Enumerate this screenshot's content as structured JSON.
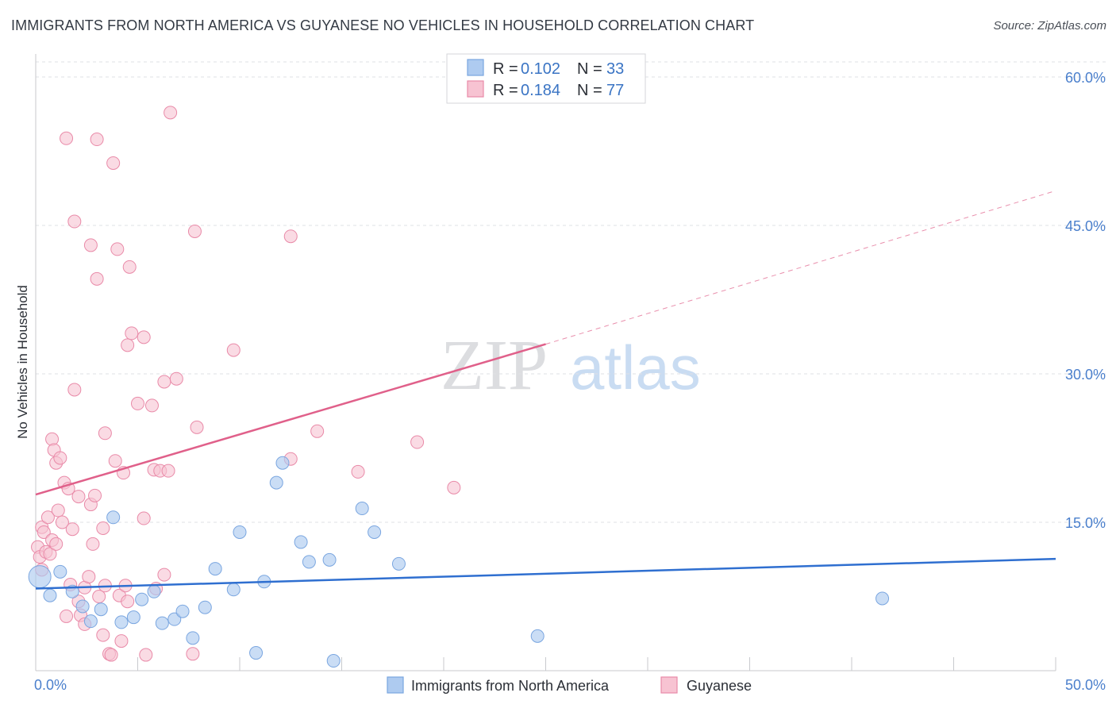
{
  "title": "IMMIGRANTS FROM NORTH AMERICA VS GUYANESE NO VEHICLES IN HOUSEHOLD CORRELATION CHART",
  "source": "Source: ZipAtlas.com",
  "watermark": {
    "zip": "ZIP",
    "atlas": "atlas"
  },
  "colors": {
    "blue_fill": "#aecbf0",
    "blue_stroke": "#7aa6e0",
    "blue_line": "#2f6fd0",
    "pink_fill": "#f7c3d2",
    "pink_stroke": "#e98aa8",
    "pink_line": "#e0608a",
    "tick_text": "#4a7fcc"
  },
  "legend": {
    "series": [
      {
        "r_label": "R =",
        "r_value": "0.102",
        "n_label": "N =",
        "n_value": "33"
      },
      {
        "r_label": "R =",
        "r_value": "0.184",
        "n_label": "N =",
        "n_value": "77"
      }
    ]
  },
  "bottom_legend": [
    "Immigrants from North America",
    "Guyanese"
  ],
  "chart_data": {
    "type": "scatter",
    "title": "IMMIGRANTS FROM NORTH AMERICA VS GUYANESE NO VEHICLES IN HOUSEHOLD CORRELATION CHART",
    "xlabel": "",
    "ylabel": "No Vehicles in Household",
    "xlim": [
      0,
      50
    ],
    "ylim": [
      0,
      60
    ],
    "x_tick_labels": [
      "0.0%",
      "50.0%"
    ],
    "y_ticks": [
      15,
      30,
      45,
      60
    ],
    "y_tick_labels": [
      "15.0%",
      "30.0%",
      "45.0%",
      "60.0%"
    ],
    "series": [
      {
        "name": "Immigrants from North America",
        "R": 0.102,
        "N": 33,
        "trend": {
          "x": [
            0,
            50
          ],
          "y": [
            8.3,
            11.3
          ],
          "dashed_from": null
        },
        "points": [
          [
            0.2,
            9.5
          ],
          [
            0.7,
            7.6
          ],
          [
            1.2,
            10.0
          ],
          [
            1.8,
            8.0
          ],
          [
            2.3,
            6.5
          ],
          [
            2.7,
            5.0
          ],
          [
            3.2,
            6.2
          ],
          [
            3.8,
            15.5
          ],
          [
            4.2,
            4.9
          ],
          [
            4.8,
            5.4
          ],
          [
            5.2,
            7.2
          ],
          [
            5.8,
            8.0
          ],
          [
            6.2,
            4.8
          ],
          [
            6.8,
            5.2
          ],
          [
            7.2,
            6.0
          ],
          [
            7.7,
            3.3
          ],
          [
            8.3,
            6.4
          ],
          [
            8.8,
            10.3
          ],
          [
            9.7,
            8.2
          ],
          [
            10.0,
            14.0
          ],
          [
            10.8,
            1.8
          ],
          [
            11.2,
            9.0
          ],
          [
            11.8,
            19.0
          ],
          [
            12.1,
            21.0
          ],
          [
            13.0,
            13.0
          ],
          [
            13.4,
            11.0
          ],
          [
            14.4,
            11.2
          ],
          [
            14.6,
            1.0
          ],
          [
            16.0,
            16.4
          ],
          [
            16.6,
            14.0
          ],
          [
            17.8,
            10.8
          ],
          [
            24.6,
            3.5
          ],
          [
            41.5,
            7.3
          ]
        ]
      },
      {
        "name": "Guyanese",
        "R": 0.184,
        "N": 77,
        "trend": {
          "x": [
            0,
            25
          ],
          "y": [
            17.8,
            33.0
          ],
          "dashed_to": [
            50,
            48.5
          ]
        },
        "points": [
          [
            0.1,
            12.5
          ],
          [
            0.2,
            11.5
          ],
          [
            0.3,
            14.5
          ],
          [
            0.4,
            14.0
          ],
          [
            0.5,
            12.0
          ],
          [
            0.6,
            15.5
          ],
          [
            0.7,
            11.8
          ],
          [
            0.8,
            13.2
          ],
          [
            0.8,
            23.4
          ],
          [
            0.9,
            22.3
          ],
          [
            1.0,
            12.8
          ],
          [
            1.0,
            21.0
          ],
          [
            1.1,
            16.2
          ],
          [
            1.2,
            21.5
          ],
          [
            1.3,
            15.0
          ],
          [
            1.4,
            19.0
          ],
          [
            1.5,
            53.8
          ],
          [
            1.5,
            5.5
          ],
          [
            1.6,
            18.4
          ],
          [
            1.7,
            8.7
          ],
          [
            1.8,
            14.3
          ],
          [
            1.9,
            45.4
          ],
          [
            1.9,
            28.4
          ],
          [
            2.1,
            17.6
          ],
          [
            2.1,
            7.0
          ],
          [
            2.2,
            5.6
          ],
          [
            2.4,
            8.4
          ],
          [
            2.4,
            4.7
          ],
          [
            2.6,
            9.5
          ],
          [
            2.7,
            16.8
          ],
          [
            2.7,
            43.0
          ],
          [
            2.8,
            12.8
          ],
          [
            2.9,
            17.7
          ],
          [
            3.0,
            39.6
          ],
          [
            3.0,
            53.7
          ],
          [
            3.1,
            7.5
          ],
          [
            3.3,
            3.6
          ],
          [
            3.3,
            14.4
          ],
          [
            3.4,
            8.6
          ],
          [
            3.4,
            24.0
          ],
          [
            3.6,
            1.7
          ],
          [
            3.7,
            1.6
          ],
          [
            3.8,
            51.3
          ],
          [
            3.9,
            21.2
          ],
          [
            4.0,
            42.6
          ],
          [
            4.1,
            7.6
          ],
          [
            4.2,
            3.0
          ],
          [
            4.3,
            20.0
          ],
          [
            4.4,
            8.6
          ],
          [
            4.5,
            7.0
          ],
          [
            4.5,
            32.9
          ],
          [
            4.6,
            40.8
          ],
          [
            4.7,
            34.1
          ],
          [
            5.0,
            27.0
          ],
          [
            5.3,
            33.7
          ],
          [
            5.3,
            15.4
          ],
          [
            5.4,
            1.6
          ],
          [
            5.7,
            26.8
          ],
          [
            5.8,
            20.3
          ],
          [
            5.9,
            8.3
          ],
          [
            6.1,
            20.2
          ],
          [
            6.3,
            9.7
          ],
          [
            6.3,
            29.2
          ],
          [
            6.5,
            20.2
          ],
          [
            6.6,
            56.4
          ],
          [
            6.9,
            29.5
          ],
          [
            7.7,
            1.7
          ],
          [
            7.8,
            44.4
          ],
          [
            7.9,
            24.6
          ],
          [
            9.7,
            32.4
          ],
          [
            12.5,
            21.4
          ],
          [
            12.5,
            43.9
          ],
          [
            13.8,
            24.2
          ],
          [
            15.8,
            20.1
          ],
          [
            18.7,
            23.1
          ],
          [
            20.5,
            18.5
          ],
          [
            0.3,
            10.2
          ]
        ]
      }
    ]
  }
}
